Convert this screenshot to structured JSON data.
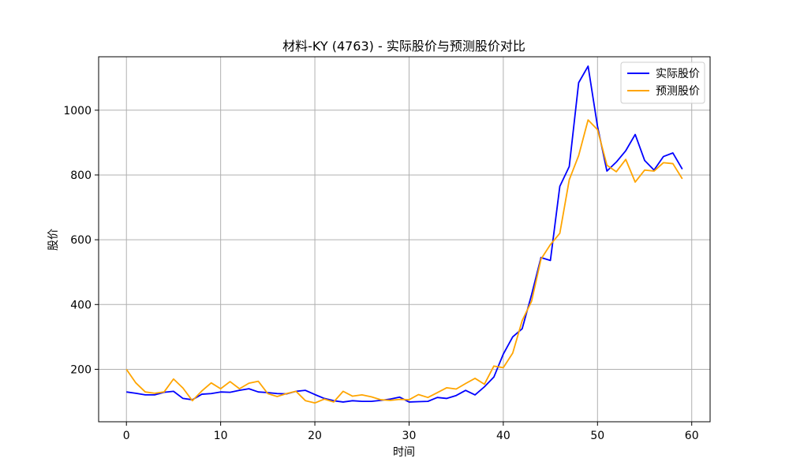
{
  "chart_data": {
    "type": "line",
    "title": "材料-KY (4763) - 实际股价与预测股价对比",
    "xlabel": "时间",
    "ylabel": "股价",
    "xlim": [
      -2.95,
      61.95
    ],
    "ylim": [
      38,
      1165
    ],
    "xticks": [
      0,
      10,
      20,
      30,
      40,
      50,
      60
    ],
    "yticks": [
      200,
      400,
      600,
      800,
      1000
    ],
    "grid": true,
    "legend": "top-right",
    "x": [
      0,
      1,
      2,
      3,
      4,
      5,
      6,
      7,
      8,
      9,
      10,
      11,
      12,
      13,
      14,
      15,
      16,
      17,
      18,
      19,
      20,
      21,
      22,
      23,
      24,
      25,
      26,
      27,
      28,
      29,
      30,
      31,
      32,
      33,
      34,
      35,
      36,
      37,
      38,
      39,
      40,
      41,
      42,
      43,
      44,
      45,
      46,
      47,
      48,
      49,
      50,
      51,
      52,
      53,
      54,
      55,
      56,
      57,
      58,
      59
    ],
    "series": [
      {
        "name": "实际股价",
        "color": "#0000ff",
        "values": [
          130,
          126,
          121,
          121,
          129,
          132,
          110,
          106,
          123,
          125,
          130,
          129,
          135,
          140,
          130,
          128,
          125,
          124,
          132,
          135,
          122,
          110,
          103,
          99,
          103,
          101,
          101,
          104,
          108,
          114,
          99,
          100,
          101,
          113,
          110,
          119,
          135,
          121,
          146,
          176,
          247,
          300,
          325,
          430,
          545,
          536,
          765,
          826,
          1085,
          1136,
          950,
          812,
          840,
          875,
          925,
          845,
          815,
          857,
          868,
          818
        ]
      },
      {
        "name": "预测股价",
        "color": "#ffa500",
        "values": [
          200,
          158,
          130,
          126,
          130,
          170,
          142,
          103,
          133,
          158,
          140,
          162,
          140,
          157,
          163,
          125,
          116,
          125,
          132,
          103,
          96,
          108,
          99,
          132,
          117,
          121,
          115,
          106,
          104,
          107,
          106,
          122,
          113,
          128,
          143,
          139,
          156,
          172,
          154,
          210,
          205,
          250,
          350,
          410,
          540,
          585,
          620,
          785,
          860,
          970,
          940,
          830,
          810,
          848,
          778,
          815,
          812,
          838,
          835,
          788
        ]
      }
    ]
  }
}
